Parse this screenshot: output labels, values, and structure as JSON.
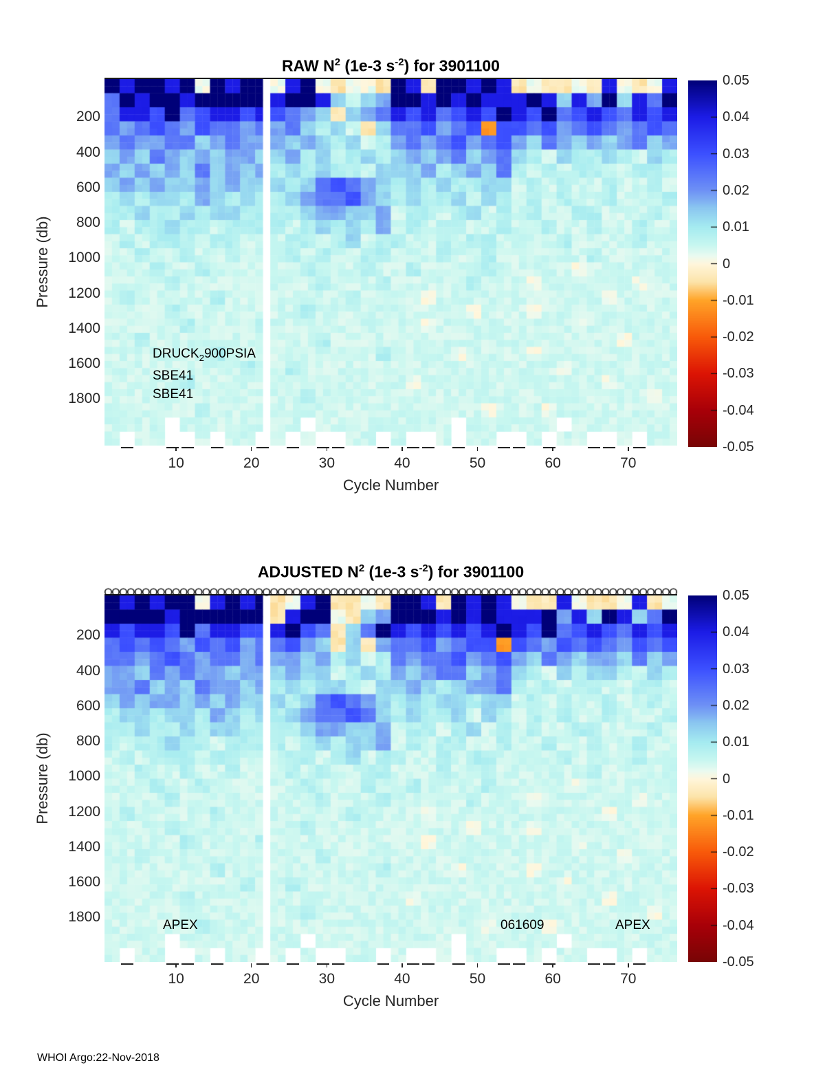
{
  "page": {
    "footer": "WHOI Argo:22-Nov-2018",
    "background": "#ffffff"
  },
  "colormap": {
    "anchors": [
      [
        -0.05,
        "#780505"
      ],
      [
        -0.04,
        "#A80008"
      ],
      [
        -0.03,
        "#DC1404"
      ],
      [
        -0.02,
        "#F85A0A"
      ],
      [
        -0.01,
        "#FFA428"
      ],
      [
        -0.005,
        "#FCE4AA"
      ],
      [
        0.0,
        "#FFF6DC"
      ],
      [
        0.002,
        "#EBFAF0"
      ],
      [
        0.005,
        "#C8F7F0"
      ],
      [
        0.01,
        "#A5EBF0"
      ],
      [
        0.015,
        "#8CC8F0"
      ],
      [
        0.02,
        "#6E91F5"
      ],
      [
        0.03,
        "#3C50FF"
      ],
      [
        0.04,
        "#1C1CE6"
      ],
      [
        0.05,
        "#000078"
      ]
    ]
  },
  "levels": {
    "a": -0.012,
    "b": -0.004,
    "c": 0.0015,
    "d": 0.0045,
    "e": 0.008,
    "f": 0.013,
    "g": 0.018,
    "h": 0.024,
    "i": 0.03,
    "j": 0.04,
    "k": 0.05,
    "W": null
  },
  "chart_data": [
    {
      "id": "raw",
      "type": "heatmap",
      "title_parts": [
        "RAW N",
        "2",
        " (1e-3 s",
        "-2",
        ") for 3901100"
      ],
      "xlabel": "Cycle Number",
      "ylabel": "Pressure (db)",
      "x_ticks": [
        10,
        20,
        30,
        40,
        50,
        60,
        70
      ],
      "y_ticks": [
        200,
        400,
        600,
        800,
        1000,
        1200,
        1400,
        1600,
        1800
      ],
      "x_range": [
        1,
        76
      ],
      "y_range_db": [
        0,
        2080
      ],
      "db_per_row": 80,
      "cycles_per_col": 2,
      "missing_cycles": [
        22
      ],
      "colorbar_ticks": [
        0.05,
        0.04,
        0.03,
        0.02,
        0.01,
        0,
        -0.01,
        -0.02,
        -0.03,
        -0.04,
        -0.05
      ],
      "colorbar_range": [
        -0.05,
        0.05
      ],
      "annotations": [
        {
          "parts": [
            "DRUCK",
            "2",
            "900PSIA"
          ]
        },
        {
          "text": "SBE41"
        },
        {
          "text": "SBE41"
        }
      ],
      "grid_rows": [
        [
          "kjkkjkckjk",
          "k",
          "cjkcbccb",
          "kjbkkjkj",
          "bcbbcbjcbcj"
        ],
        [
          "hkjkkjkkkk",
          "k",
          "jkkjfdfg",
          "kkjkjkjj",
          "jkjfjgkfjhk"
        ],
        [
          "hjjikhijji",
          "j",
          "ihgfbfgh",
          "jijhijik",
          "jikhijihjij"
        ],
        [
          "hghihgihhg",
          "h",
          "ghfefdbf",
          "hhighiai",
          "ihighihghih"
        ],
        [
          "ghgghhfghg",
          "g",
          "gfgfefde",
          "ghghighi",
          "gfhgfgfghfg"
        ],
        [
          "fgfhgfgfgg",
          "f",
          "fgefdefe",
          "fgfghfgh",
          "fedfeefedfe"
        ],
        [
          "gfgfgfhfgf",
          "g",
          "efefeedf",
          "ffgefgfh",
          "ededeeddeed"
        ],
        [
          "fgfgffgfgf",
          "f",
          "fefhihgf",
          "efefeeff",
          "dededdedded"
        ],
        [
          "efeffegfef",
          "e",
          "efghhigf",
          "efeefdfe",
          "dededdeddde"
        ],
        [
          "eefeefeffe",
          "e",
          "eefggffg",
          "deedefde",
          "deddeeddded"
        ],
        [
          "edeefeedee",
          "e",
          "edefefeg",
          "dedeedde",
          "ddeddeddedd"
        ],
        [
          "dedeeedeed",
          "d",
          "deedefde",
          "eddedeed",
          "dddeddddedd"
        ],
        [
          "ddeddedded",
          "d",
          "dededdee",
          "dddedded",
          "dddddeddddd"
        ],
        [
          "dddeddeddd",
          "d",
          "ddeddded",
          "dedddded",
          "ddddcdddddd"
        ],
        [
          "ddddeddddd",
          "d",
          "dddeddde",
          "dddddedd",
          "dcddddddcdd"
        ],
        [
          "dedddddedd",
          "d",
          "dddddedd",
          "ddcddddd",
          "ddddddcdddd"
        ],
        [
          "ddddeddddd",
          "d",
          "ddeddddd",
          "dddddcdd",
          "dcddddddddd"
        ],
        [
          "dddddedddd",
          "e",
          "dddddddd",
          "ddcddddd",
          "ddddcdddddd"
        ],
        [
          "ddeddddddd",
          "d",
          "dddedddd",
          "dddddddd",
          "dddddddcddd"
        ],
        [
          "dddddddedd",
          "d",
          "ddddddde",
          "ddddcddd",
          "dcddddddddd"
        ],
        [
          "ddddddddde",
          "d",
          "dedddddd",
          "dddddddd",
          "dddcddddddd"
        ],
        [
          "dddddedddd",
          "d",
          "dddddddd",
          "dcdddddd",
          "ddddddcdddd"
        ],
        [
          "dddddddddd",
          "d",
          "ddeddddd",
          "dddddddd",
          "dddddddddcd"
        ],
        [
          "ddddddeddd",
          "d",
          "dddddddd",
          "ddddddcd",
          "ddcdddddddd"
        ],
        [
          "ddddWddddd",
          "d",
          "ddWddddd",
          "ddddWddd",
          "dddWddddddd"
        ],
        [
          "dWddWWdWdd",
          "W",
          "dWdWWddW",
          "dWWdWddW",
          "WdWddWWdWdd"
        ]
      ]
    },
    {
      "id": "adjusted",
      "type": "heatmap",
      "title_parts": [
        "ADJUSTED N",
        "2",
        " (1e-3 s",
        "-2",
        ") for 3901100"
      ],
      "xlabel": "Cycle Number",
      "ylabel": "Pressure (db)",
      "x_ticks": [
        10,
        20,
        30,
        40,
        50,
        60,
        70
      ],
      "y_ticks": [
        200,
        400,
        600,
        800,
        1000,
        1200,
        1400,
        1600,
        1800
      ],
      "x_range": [
        1,
        76
      ],
      "y_range_db": [
        0,
        2080
      ],
      "db_per_row": 80,
      "cycles_per_col": 2,
      "missing_cycles": [
        22
      ],
      "colorbar_ticks": [
        0.05,
        0.04,
        0.03,
        0.02,
        0.01,
        0,
        -0.01,
        -0.02,
        -0.03,
        -0.04,
        -0.05
      ],
      "colorbar_range": [
        -0.05,
        0.05
      ],
      "marker_row": {
        "shape": "open-circle",
        "count": 76
      },
      "annotations": [
        {
          "text": "APEX"
        },
        {
          "text": "061609"
        },
        {
          "text": "APEX"
        }
      ],
      "grid_rows": [
        [
          "kjkjkkcjkj",
          "k",
          "bcjkbbcb",
          "kkjbkjkj",
          "cbbjcbbcjbc"
        ],
        [
          "kkkkjkkkkk",
          "k",
          "bjkkcbfg",
          "kkkjkjkj",
          "jjkgjfkjfhk"
        ],
        [
          "jijjikhjji",
          "i",
          "jkihbfhk",
          "jijijijk",
          "jikhijihjij"
        ],
        [
          "hihihgihig",
          "h",
          "higfbfbg",
          "hhighiia",
          "ihgihihgihi"
        ],
        [
          "hhghihghhg",
          "h",
          "ggfgefde",
          "hghhighi",
          "gfhgfggfhfg"
        ],
        [
          "ggfhghggfg",
          "g",
          "fgffdefe",
          "gfghhfgh",
          "fedfeffedfe"
        ],
        [
          "gghfgfhggf",
          "g",
          "efeffedf",
          "fgfefggh",
          "ededeeddeed"
        ],
        [
          "fgfggfgfgf",
          "f",
          "fefhihgf",
          "efeffeff",
          "dededdedded"
        ],
        [
          "effeffegfe",
          "f",
          "efghhihf",
          "efeefdfe",
          "dededdeddde"
        ],
        [
          "eefeefeffe",
          "e",
          "eefggffg",
          "deedefde",
          "deddeeddded"
        ],
        [
          "edeefeedee",
          "e",
          "edefeffg",
          "dedeedde",
          "ddeddeddedd"
        ],
        [
          "dedeeedeed",
          "d",
          "deedefde",
          "eddedeed",
          "dddeddddedd"
        ],
        [
          "ddeddedded",
          "d",
          "dededdee",
          "dddedded",
          "dddddeddddd"
        ],
        [
          "dddeddeddd",
          "d",
          "ddeddded",
          "dedddded",
          "ddddcdddddd"
        ],
        [
          "ddddeddddd",
          "d",
          "dddeddde",
          "dddddedd",
          "dcddddddcdd"
        ],
        [
          "dedddddedd",
          "d",
          "dddddedd",
          "ddcddddd",
          "ddddddcdddd"
        ],
        [
          "ddddeddddd",
          "d",
          "ddeddddd",
          "dddddcdd",
          "dcddddddddd"
        ],
        [
          "dddddedddd",
          "e",
          "dddddddd",
          "ddcddddd",
          "ddddcdddddd"
        ],
        [
          "ddeddddddd",
          "d",
          "dddedddd",
          "dddddddd",
          "dddddddcddd"
        ],
        [
          "dddddddedd",
          "d",
          "ddddddde",
          "ddddcddd",
          "dcddddddddd"
        ],
        [
          "ddddddddde",
          "d",
          "dedddddd",
          "dddddddd",
          "dddcddddddd"
        ],
        [
          "dddddedddd",
          "d",
          "dddddddd",
          "dcdddddd",
          "ddddddcdddd"
        ],
        [
          "dddddddddd",
          "d",
          "ddeddddd",
          "dddddddd",
          "dddddddddcd"
        ],
        [
          "ddddddeddd",
          "d",
          "dddddddd",
          "ddddddcd",
          "ddcdddddddd"
        ],
        [
          "ddddWddddd",
          "d",
          "ddWddddd",
          "ddddWddd",
          "dddWddddddd"
        ],
        [
          "dWddWWdWdd",
          "W",
          "dWdWWddW",
          "dWWdWddW",
          "WdWddWWdWdd"
        ]
      ]
    }
  ]
}
